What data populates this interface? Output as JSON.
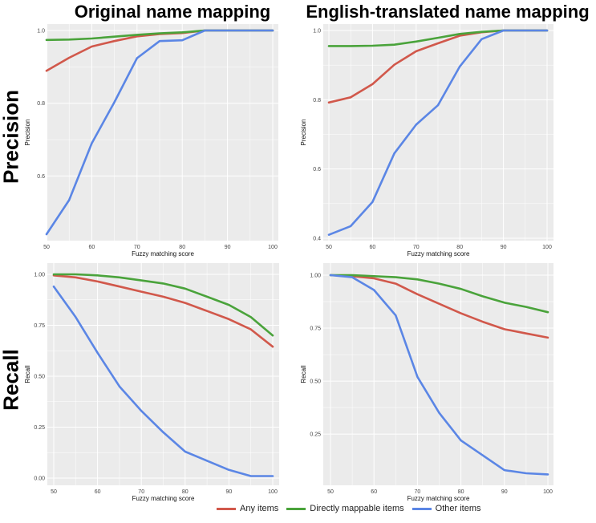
{
  "column_titles": [
    "Original name mapping",
    "English-translated name mapping"
  ],
  "row_titles": [
    "Precision",
    "Recall"
  ],
  "colors": {
    "any": "#d1584b",
    "direct": "#4aa33b",
    "other": "#5b86e5",
    "panel_bg": "#ebebeb",
    "grid": "#ffffff"
  },
  "legend": [
    {
      "key": "any",
      "label": "Any items"
    },
    {
      "key": "direct",
      "label": "Directly mappable items"
    },
    {
      "key": "other",
      "label": "Other items"
    }
  ],
  "chart_data": [
    {
      "type": "line",
      "xlabel": "Fuzzy matching score",
      "ylabel": "Precision",
      "xlim": [
        50,
        100
      ],
      "ylim": [
        0.44,
        1.0
      ],
      "xticks": [
        50,
        60,
        70,
        80,
        90,
        100
      ],
      "yticks": [
        0.6,
        0.8,
        1.0
      ],
      "ytick_labels": [
        "0.6",
        "0.8",
        "1.0"
      ],
      "x": [
        50,
        55,
        60,
        65,
        70,
        75,
        80,
        85,
        90,
        95,
        100
      ],
      "series": [
        {
          "key": "any",
          "name": "Any items",
          "values": [
            0.889,
            0.925,
            0.956,
            0.971,
            0.984,
            0.99,
            0.993,
            1.0,
            1.0,
            1.0,
            1.0
          ]
        },
        {
          "key": "direct",
          "name": "Directly mappable items",
          "values": [
            0.974,
            0.975,
            0.978,
            0.983,
            0.988,
            0.992,
            0.995,
            1.0,
            1.0,
            1.0,
            1.0
          ]
        },
        {
          "key": "other",
          "name": "Other items",
          "values": [
            0.44,
            0.534,
            0.69,
            0.803,
            0.924,
            0.971,
            0.973,
            1.0,
            1.0,
            1.0,
            1.0
          ]
        }
      ]
    },
    {
      "type": "line",
      "xlabel": "Fuzzy matching score",
      "ylabel": "Precision",
      "xlim": [
        50,
        100
      ],
      "ylim": [
        0.4,
        1.0
      ],
      "xticks": [
        50,
        60,
        70,
        80,
        90,
        100
      ],
      "yticks": [
        0.4,
        0.6,
        0.8,
        1.0
      ],
      "ytick_labels": [
        "0.4",
        "0.6",
        "0.8",
        "1.0"
      ],
      "x": [
        50,
        55,
        60,
        65,
        70,
        75,
        80,
        85,
        90,
        95,
        100
      ],
      "series": [
        {
          "key": "any",
          "name": "Any items",
          "values": [
            0.792,
            0.807,
            0.845,
            0.901,
            0.94,
            0.963,
            0.985,
            0.995,
            1.0,
            1.0,
            1.0
          ]
        },
        {
          "key": "direct",
          "name": "Directly mappable items",
          "values": [
            0.955,
            0.955,
            0.956,
            0.959,
            0.968,
            0.979,
            0.99,
            0.996,
            1.0,
            1.0,
            1.0
          ]
        },
        {
          "key": "other",
          "name": "Other items",
          "values": [
            0.41,
            0.435,
            0.505,
            0.645,
            0.728,
            0.784,
            0.896,
            0.975,
            1.0,
            1.0,
            1.0
          ]
        }
      ]
    },
    {
      "type": "line",
      "xlabel": "Fuzzy matching score",
      "ylabel": "Recall",
      "xlim": [
        50,
        100
      ],
      "ylim": [
        0.0,
        1.0
      ],
      "xticks": [
        50,
        60,
        70,
        80,
        90,
        100
      ],
      "yticks": [
        0.0,
        0.25,
        0.5,
        0.75,
        1.0
      ],
      "ytick_labels": [
        "0.00",
        "0.25",
        "0.50",
        "0.75",
        "1.00"
      ],
      "x": [
        50,
        55,
        60,
        65,
        70,
        75,
        80,
        85,
        90,
        95,
        100
      ],
      "series": [
        {
          "key": "any",
          "name": "Any items",
          "values": [
            0.995,
            0.985,
            0.965,
            0.94,
            0.915,
            0.89,
            0.86,
            0.82,
            0.78,
            0.73,
            0.645
          ]
        },
        {
          "key": "direct",
          "name": "Directly mappable items",
          "values": [
            1.0,
            1.0,
            0.995,
            0.985,
            0.97,
            0.955,
            0.93,
            0.89,
            0.85,
            0.79,
            0.7
          ]
        },
        {
          "key": "other",
          "name": "Other items",
          "values": [
            0.94,
            0.79,
            0.615,
            0.45,
            0.33,
            0.225,
            0.13,
            0.085,
            0.04,
            0.01,
            0.01
          ]
        }
      ]
    },
    {
      "type": "line",
      "xlabel": "Fuzzy matching score",
      "ylabel": "Recall",
      "xlim": [
        50,
        100
      ],
      "ylim": [
        0.05,
        1.0
      ],
      "xticks": [
        50,
        60,
        70,
        80,
        90,
        100
      ],
      "yticks": [
        0.25,
        0.5,
        0.75,
        1.0
      ],
      "ytick_labels": [
        "0.25",
        "0.50",
        "0.75",
        "1.00"
      ],
      "x": [
        50,
        55,
        60,
        65,
        70,
        75,
        80,
        85,
        90,
        95,
        100
      ],
      "series": [
        {
          "key": "any",
          "name": "Any items",
          "values": [
            1.0,
            0.995,
            0.985,
            0.96,
            0.91,
            0.865,
            0.82,
            0.78,
            0.745,
            0.725,
            0.705
          ]
        },
        {
          "key": "direct",
          "name": "Directly mappable items",
          "values": [
            1.0,
            1.0,
            0.995,
            0.99,
            0.98,
            0.96,
            0.935,
            0.9,
            0.87,
            0.85,
            0.825
          ]
        },
        {
          "key": "other",
          "name": "Other items",
          "values": [
            1.0,
            0.99,
            0.93,
            0.81,
            0.52,
            0.35,
            0.22,
            0.15,
            0.08,
            0.065,
            0.06
          ]
        }
      ]
    }
  ]
}
